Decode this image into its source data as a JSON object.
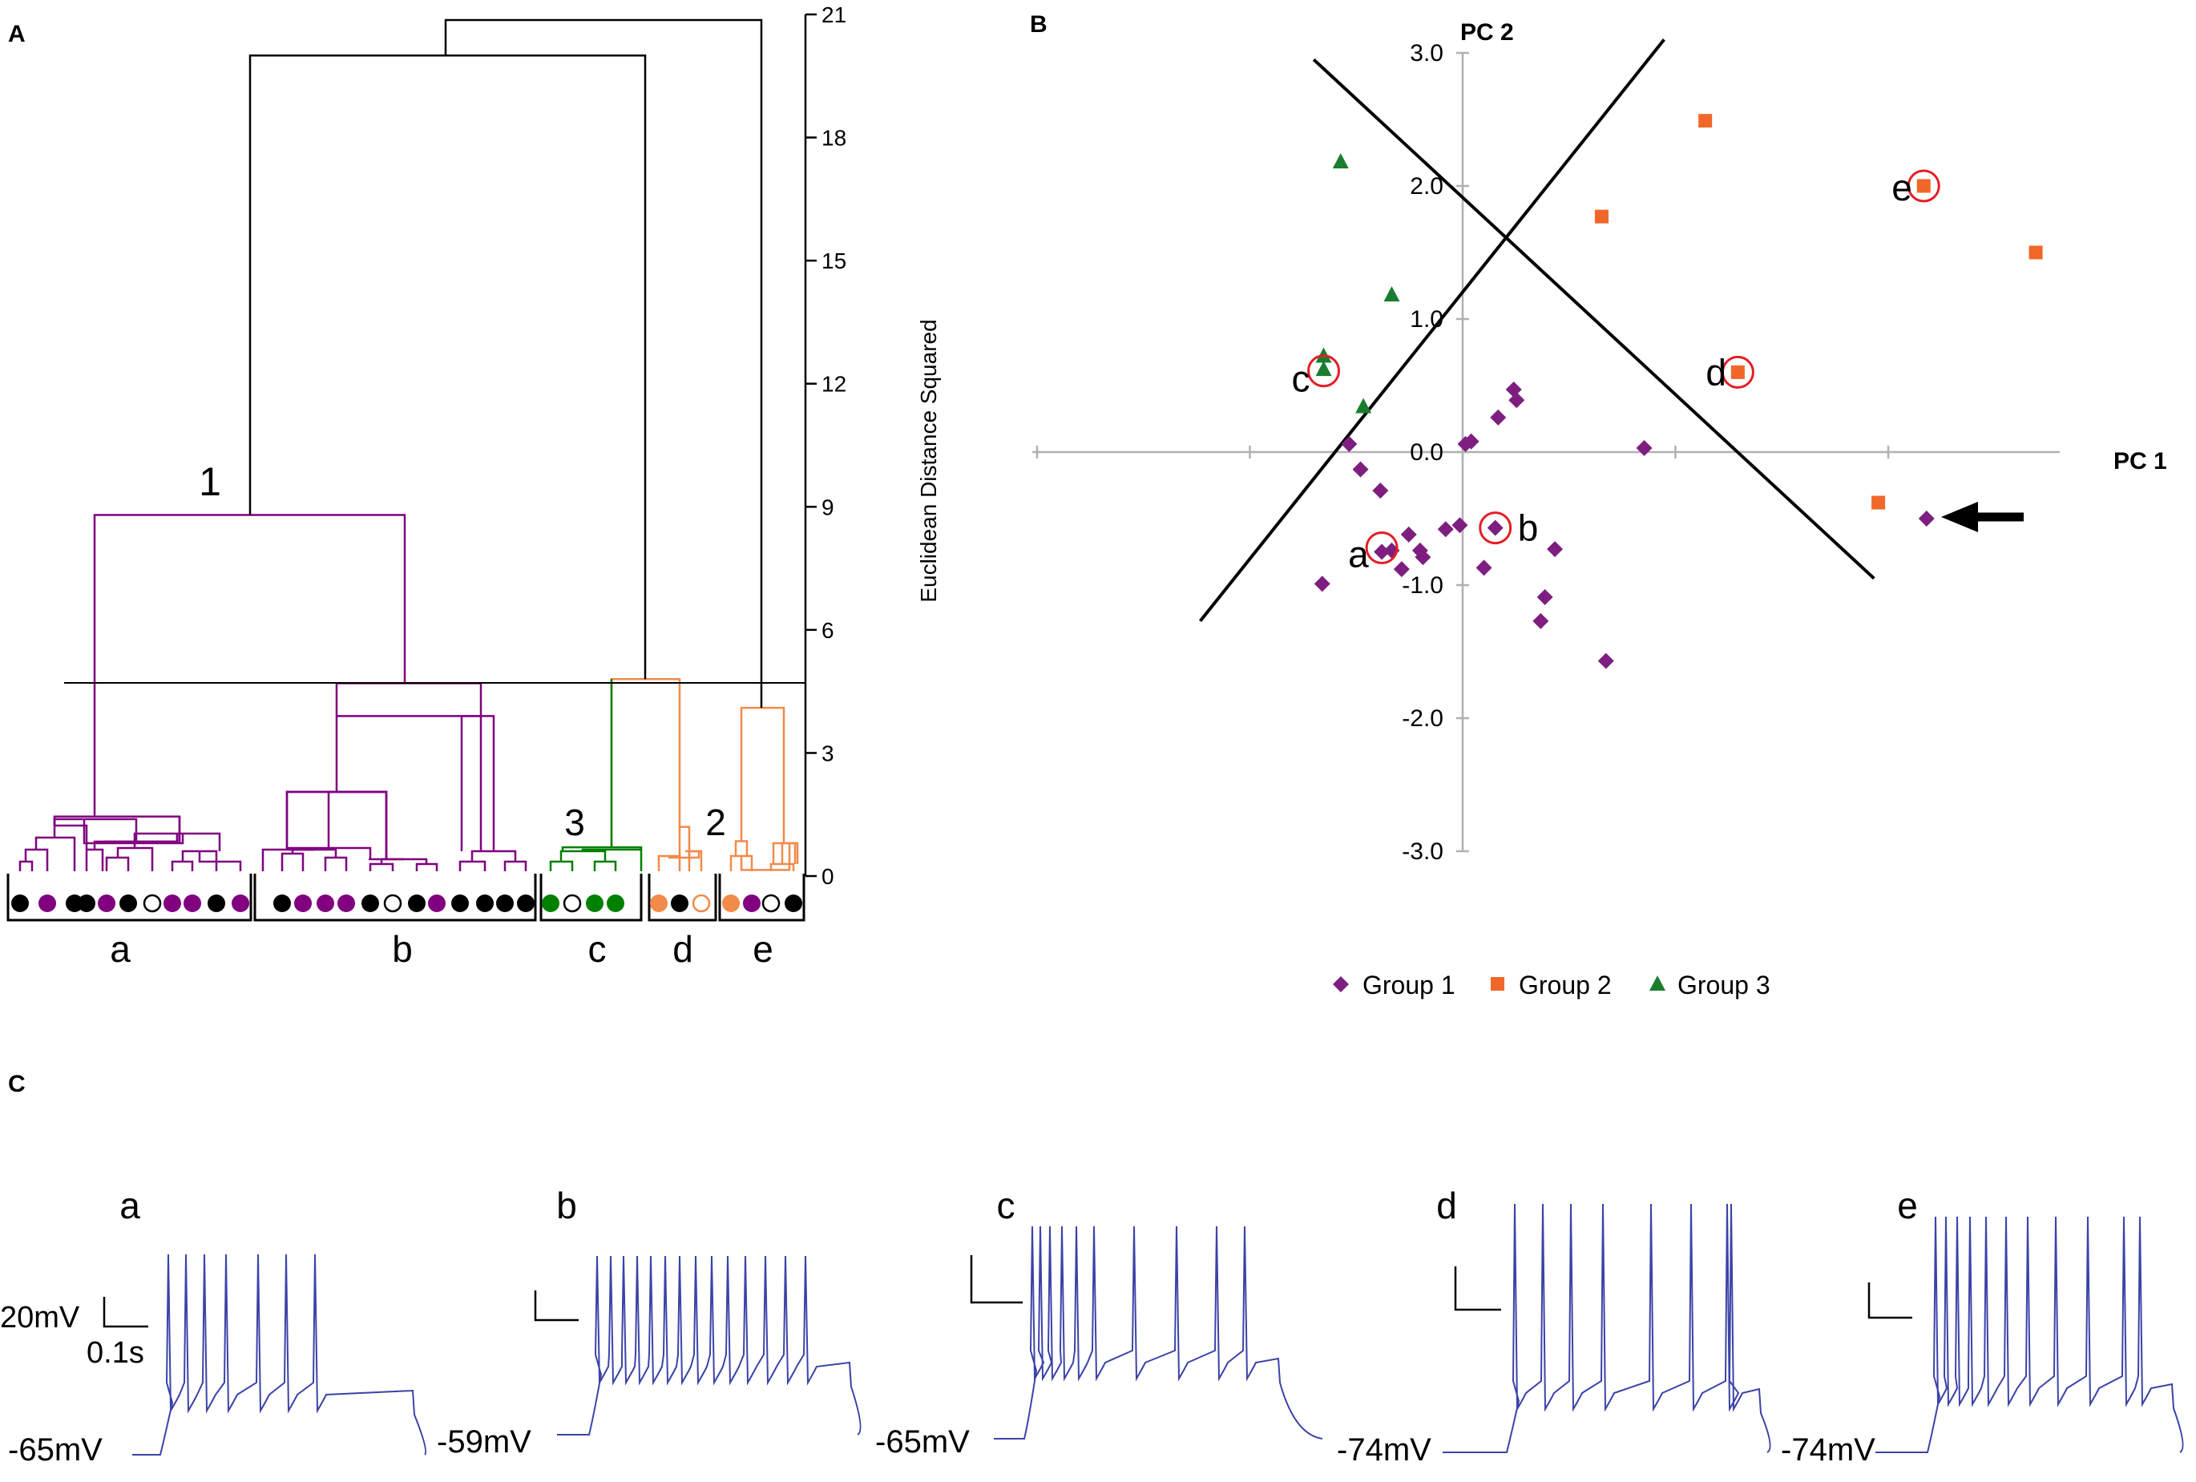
{
  "colors": {
    "group1": "#7e1e80",
    "group2": "#f0672a",
    "group3": "#1a7d2e",
    "subgroupA": "#800080",
    "subgroupB": "#800080",
    "subgroupC": "#008000",
    "subgroupD": "#f28a4a",
    "subgroupE": "#f28a4a",
    "black": "#000000",
    "trace": "#3b43a8",
    "axis": "#b0b0b0",
    "circle": "#e41e26"
  },
  "chart_data": [
    {
      "id": "A",
      "panel_label": "A",
      "type": "dendrogram",
      "ylabel": "Euclidean Distance Squared",
      "ylim": [
        0,
        21
      ],
      "yticks": [
        0,
        3,
        6,
        9,
        12,
        15,
        18,
        21
      ],
      "ytick_labels": [
        "0",
        "3",
        "6",
        "9",
        "12",
        "15",
        "18",
        "21"
      ],
      "cut_height": 4.8,
      "cluster_numbers": [
        "1",
        "2",
        "3"
      ],
      "subgroups": [
        {
          "label": "a",
          "color_key": "subgroupA",
          "leaves": [
            "black",
            "purple",
            "black",
            "black",
            "purple",
            "black",
            "open",
            "purple",
            "purple",
            "black",
            "purple"
          ]
        },
        {
          "label": "b",
          "color_key": "subgroupB",
          "leaves": [
            "black",
            "purple",
            "purple",
            "purple",
            "black",
            "open",
            "black",
            "purple",
            "black",
            "black",
            "black",
            "black"
          ]
        },
        {
          "label": "c",
          "color_key": "subgroupC",
          "leaves": [
            "green",
            "open",
            "green",
            "green"
          ]
        },
        {
          "label": "d",
          "color_key": "subgroupD",
          "leaves": [
            "orange",
            "black",
            "orange-open"
          ]
        },
        {
          "label": "e",
          "color_key": "subgroupE",
          "leaves": [
            "orange",
            "purple",
            "open",
            "black"
          ]
        }
      ],
      "merges": {
        "a_root": 1.45,
        "b_root": 4.7,
        "c_root": 0.7,
        "d_root": 1.2,
        "e_root": 4.1,
        "cluster1": 8.8,
        "c_d": 4.8,
        "e_join": 21.0,
        "top": 20.0,
        "cluster1_join": 20.0
      }
    },
    {
      "id": "B",
      "panel_label": "B",
      "type": "scatter",
      "xlabel": "PC 1",
      "ylabel": "PC 2",
      "xlim": [
        -3.05,
        4.2
      ],
      "ylim": [
        -3.0,
        3.0
      ],
      "yticks": [
        3.0,
        2.0,
        1.0,
        0.0,
        -1.0,
        -2.0,
        -3.0
      ],
      "ytick_labels": [
        "3.0",
        "2.0",
        "1.0",
        "0.0",
        "-1.0",
        "-2.0",
        "-3.0"
      ],
      "xtick_positions": [
        -3.0,
        -1.5,
        0,
        1.5,
        3.0
      ],
      "legend": [
        "Group 1",
        "Group 2",
        "Group 3"
      ],
      "series": [
        {
          "name": "Group 1",
          "marker": "diamond",
          "color_key": "group1",
          "points": [
            [
              0.36,
              0.47
            ],
            [
              0.38,
              0.39
            ],
            [
              0.25,
              0.26
            ],
            [
              1.28,
              0.03
            ],
            [
              0.06,
              0.08
            ],
            [
              0.02,
              0.06
            ],
            [
              -0.8,
              0.06
            ],
            [
              -0.72,
              -0.13
            ],
            [
              -0.58,
              -0.29
            ],
            [
              -0.12,
              -0.58
            ],
            [
              -0.02,
              -0.55
            ],
            [
              0.23,
              -0.57
            ],
            [
              -0.38,
              -0.62
            ],
            [
              -0.3,
              -0.74
            ],
            [
              -0.28,
              -0.79
            ],
            [
              -0.5,
              -0.74
            ],
            [
              -0.57,
              -0.75
            ],
            [
              -0.43,
              -0.88
            ],
            [
              0.65,
              -0.73
            ],
            [
              0.15,
              -0.87
            ],
            [
              -0.99,
              -0.99
            ],
            [
              0.58,
              -1.09
            ],
            [
              0.55,
              -1.27
            ],
            [
              1.01,
              -1.57
            ],
            [
              3.27,
              -0.5
            ]
          ]
        },
        {
          "name": "Group 2",
          "marker": "square",
          "color_key": "group2",
          "points": [
            [
              1.71,
              2.49
            ],
            [
              0.98,
              1.77
            ],
            [
              3.25,
              2.0
            ],
            [
              4.04,
              1.5
            ],
            [
              1.94,
              0.6
            ],
            [
              2.93,
              -0.38
            ]
          ]
        },
        {
          "name": "Group 3",
          "marker": "triangle",
          "color_key": "group3",
          "points": [
            [
              -0.86,
              2.18
            ],
            [
              -0.5,
              1.18
            ],
            [
              -0.98,
              0.72
            ],
            [
              -0.98,
              0.62
            ],
            [
              -0.7,
              0.34
            ]
          ]
        }
      ],
      "highlighted": [
        {
          "label": "a",
          "point": [
            -0.57,
            -0.72
          ]
        },
        {
          "label": "b",
          "point": [
            0.23,
            -0.57
          ]
        },
        {
          "label": "c",
          "point": [
            -0.98,
            0.61
          ]
        },
        {
          "label": "d",
          "point": [
            1.94,
            0.6
          ]
        },
        {
          "label": "e",
          "point": [
            3.25,
            2.0
          ]
        }
      ],
      "divider_lines": [
        {
          "from": [
            -1.85,
            -1.27
          ],
          "to": [
            1.42,
            3.1
          ]
        },
        {
          "from": [
            -1.05,
            2.95
          ],
          "to": [
            2.9,
            -0.95
          ]
        }
      ],
      "arrow_points_to": [
        3.27,
        -0.5
      ]
    },
    {
      "id": "C",
      "panel_label": "C",
      "type": "traces",
      "scale_bar": {
        "voltage": "20mV",
        "time": "0.1s"
      },
      "traces": [
        {
          "label": "a",
          "resting": "-65mV",
          "spikes": 7
        },
        {
          "label": "b",
          "resting": "-59mV",
          "spikes": 14
        },
        {
          "label": "c",
          "resting": "-65mV",
          "spikes": 10
        },
        {
          "label": "d",
          "resting": "-74mV",
          "spikes": 8
        },
        {
          "label": "e",
          "resting": "-74mV",
          "spikes": 11
        }
      ]
    }
  ]
}
